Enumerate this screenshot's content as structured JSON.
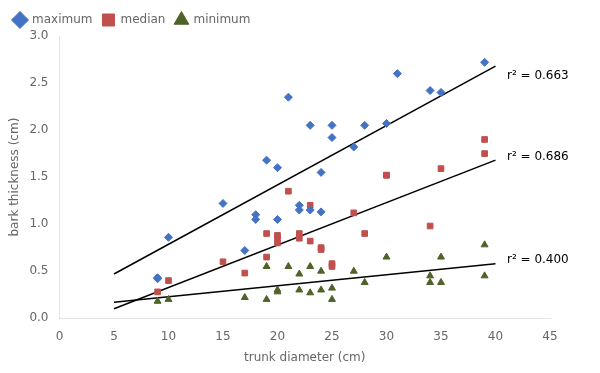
{
  "chart_data": {
    "type": "scatter",
    "xlabel": "trunk diameter (cm)",
    "ylabel": "bark thickness (cm)",
    "xlim": [
      0,
      45
    ],
    "ylim": [
      0,
      3.0
    ],
    "xticks": [
      0,
      5,
      10,
      15,
      20,
      25,
      30,
      35,
      40,
      45
    ],
    "yticks": [
      {
        "value": 0,
        "label": "0.0"
      },
      {
        "value": 0.5,
        "label": "0.5"
      },
      {
        "value": 1.0,
        "label": "1.0"
      },
      {
        "value": 1.5,
        "label": "1.5"
      },
      {
        "value": 2.0,
        "label": "2.0"
      },
      {
        "value": 2.5,
        "label": "2.5"
      },
      {
        "value": 3.0,
        "label": "3.0"
      }
    ],
    "grid": false,
    "legend": "upper left",
    "series": [
      {
        "name": "maximum",
        "type": "scatter",
        "color": "#4472C4",
        "marker": "diamond",
        "x": [
          9,
          9,
          10,
          15,
          17,
          18,
          18,
          19,
          20,
          20,
          21,
          22,
          22,
          23,
          23,
          24,
          24,
          25,
          25,
          27,
          28,
          30,
          31,
          34,
          35,
          39
        ],
        "values": [
          0.42,
          0.43,
          0.86,
          1.22,
          0.72,
          1.1,
          1.05,
          1.68,
          1.6,
          1.05,
          2.35,
          1.15,
          1.2,
          2.05,
          1.15,
          1.55,
          1.13,
          2.05,
          1.92,
          1.82,
          2.05,
          2.07,
          2.6,
          2.42,
          2.4,
          2.72
        ]
      },
      {
        "name": "median",
        "type": "scatter",
        "color": "#C0504D",
        "marker": "square",
        "x": [
          9,
          10,
          15,
          17,
          19,
          19,
          20,
          20,
          20,
          21,
          22,
          22,
          23,
          23,
          24,
          24,
          25,
          25,
          27,
          28,
          30,
          30,
          34,
          35,
          39,
          39
        ],
        "values": [
          0.28,
          0.4,
          0.6,
          0.48,
          0.9,
          0.65,
          0.85,
          0.88,
          0.8,
          1.35,
          0.9,
          0.85,
          1.2,
          0.82,
          0.75,
          0.73,
          0.58,
          0.55,
          1.12,
          0.9,
          1.52,
          1.52,
          0.98,
          1.59,
          1.9,
          1.75
        ]
      },
      {
        "name": "minimum",
        "type": "scatter",
        "color": "#4F6228",
        "marker": "triangle",
        "x": [
          9,
          10,
          17,
          19,
          19,
          20,
          20,
          21,
          22,
          22,
          23,
          23,
          24,
          24,
          25,
          25,
          27,
          28,
          30,
          34,
          34,
          35,
          35,
          39,
          39
        ],
        "values": [
          0.18,
          0.2,
          0.22,
          0.55,
          0.2,
          0.3,
          0.28,
          0.55,
          0.47,
          0.3,
          0.55,
          0.27,
          0.5,
          0.3,
          0.32,
          0.2,
          0.5,
          0.38,
          0.65,
          0.45,
          0.38,
          0.38,
          0.65,
          0.45,
          0.78
        ]
      },
      {
        "type": "line",
        "color": "#000000",
        "x": [
          5,
          40
        ],
        "values": [
          0.47,
          2.68
        ]
      },
      {
        "type": "line",
        "color": "#000000",
        "x": [
          5,
          40
        ],
        "values": [
          0.1,
          1.68
        ]
      },
      {
        "type": "line",
        "color": "#000000",
        "x": [
          5,
          40
        ],
        "values": [
          0.17,
          0.58
        ]
      }
    ],
    "annotations": [
      {
        "text": "r² = 0.663",
        "x": 40.5,
        "y": 2.58
      },
      {
        "text": "r² = 0.686",
        "x": 40.5,
        "y": 1.72
      },
      {
        "text": "r² = 0.400",
        "x": 40.5,
        "y": 0.62
      }
    ]
  }
}
